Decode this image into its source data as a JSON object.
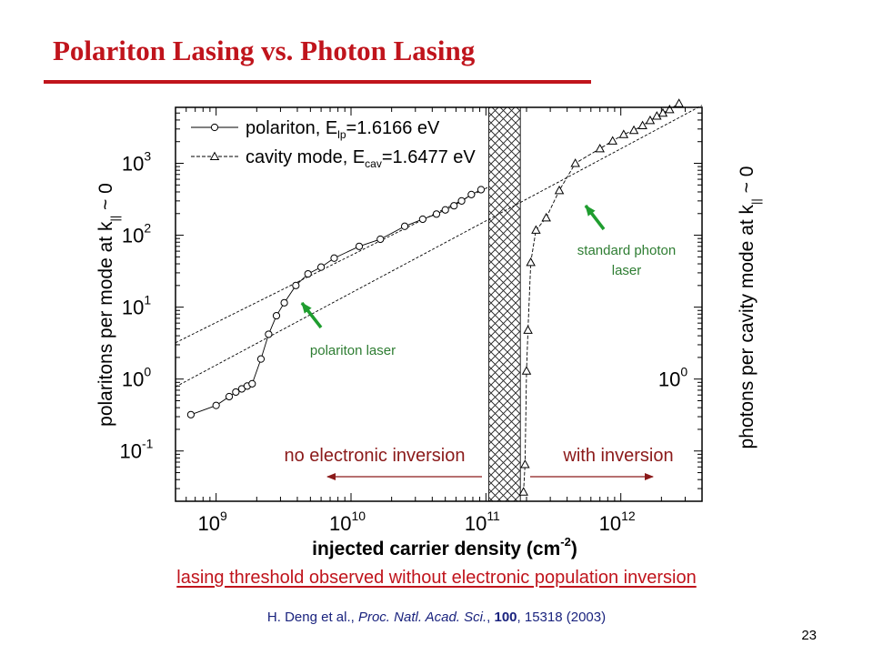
{
  "slide": {
    "title": "Polariton Lasing vs. Photon Lasing",
    "caption": "lasing threshold observed without electronic population inversion",
    "citation": {
      "authors": "H. Deng et al., ",
      "journal": "Proc. Natl. Acad. Sci.",
      "sep1": ", ",
      "volume": "100",
      "rest": ", 15318 (2003)"
    },
    "page_number": "23"
  },
  "colors": {
    "title": "#c0141c",
    "caption": "#c0141c",
    "citation": "#1a237e",
    "arrow": "#8b1a1a",
    "annotation": "#2e7d32",
    "pointer": "#1f9d2f"
  },
  "chart_data": {
    "type": "scatter",
    "x_scale": "log",
    "y_scale": "log",
    "xlim": [
      500000000.0,
      4000000000000.0
    ],
    "ylim": [
      0.02,
      6000
    ],
    "grid": false,
    "legend_position": "top-left",
    "xlabel": "injected carrier density (cm",
    "xlabel_sup": "-2",
    "xlabel_end": ")",
    "ylabel_left": "polaritons per mode at k",
    "ylabel_left_sub": "||",
    "ylabel_left_end": " ~ 0",
    "ylabel_right": "photons per cavity mode at k",
    "ylabel_right_sub": "||",
    "ylabel_right_end": " ~ 0",
    "x_ticks": [
      {
        "value": 1000000000.0,
        "base": "10",
        "exp": "9"
      },
      {
        "value": 10000000000.0,
        "base": "10",
        "exp": "10"
      },
      {
        "value": 100000000000.0,
        "base": "10",
        "exp": "11"
      },
      {
        "value": 1000000000000.0,
        "base": "10",
        "exp": "12"
      }
    ],
    "y_ticks_left": [
      {
        "value": 0.1,
        "base": "10",
        "exp": "-1"
      },
      {
        "value": 1,
        "base": "10",
        "exp": "0"
      },
      {
        "value": 10,
        "base": "10",
        "exp": "1"
      },
      {
        "value": 100,
        "base": "10",
        "exp": "2"
      },
      {
        "value": 1000,
        "base": "10",
        "exp": "3"
      }
    ],
    "y_ticks_right": [
      {
        "value": 1,
        "base": "10",
        "exp": "0"
      }
    ],
    "series": [
      {
        "name": "polariton",
        "legend_text": "polariton, E",
        "legend_sub": "lp",
        "legend_value": "=1.6166 eV",
        "marker": "circle",
        "line": "solid",
        "x": [
          650000000.0,
          1000000000.0,
          1250000000.0,
          1400000000.0,
          1550000000.0,
          1700000000.0,
          1850000000.0,
          2150000000.0,
          2450000000.0,
          2800000000.0,
          3200000000.0,
          3900000000.0,
          4800000000.0,
          6000000000.0,
          7500000000.0,
          11500000000.0,
          16500000000.0,
          25000000000.0,
          34000000000.0,
          43000000000.0,
          50000000000.0,
          58000000000.0,
          66000000000.0,
          78000000000.0,
          92000000000.0
        ],
        "y": [
          0.32,
          0.43,
          0.57,
          0.66,
          0.73,
          0.8,
          0.86,
          1.9,
          4.2,
          7.6,
          11.5,
          20.0,
          29.0,
          36.0,
          48.0,
          70.0,
          88.0,
          133.0,
          167.0,
          197.0,
          225.0,
          257.0,
          300.0,
          368.0,
          430.0
        ]
      },
      {
        "name": "cavity mode",
        "legend_text": "cavity mode, E",
        "legend_sub": "cav",
        "legend_value": "=1.6477 eV",
        "marker": "triangle",
        "line": "dashed",
        "x": [
          190000000000.0,
          195000000000.0,
          200000000000.0,
          205000000000.0,
          215000000000.0,
          235000000000.0,
          280000000000.0,
          350000000000.0,
          460000000000.0,
          700000000000.0,
          870000000000.0,
          1050000000000.0,
          1250000000000.0,
          1450000000000.0,
          1650000000000.0,
          1850000000000.0,
          2050000000000.0,
          2300000000000.0,
          2700000000000.0
        ],
        "y": [
          0.027,
          0.065,
          1.3,
          4.8,
          42.0,
          118.0,
          175.0,
          420.0,
          1000.0,
          1600.0,
          2050.0,
          2520.0,
          2880.0,
          3350.0,
          3950.0,
          4550.0,
          5000.0,
          5600.0,
          6800.0
        ]
      }
    ],
    "guide_lines": [
      {
        "x": [
          500000000.0,
          105000000000.0
        ],
        "y": [
          3.2,
          470
        ]
      },
      {
        "x": [
          500000000.0,
          4000000000000.0
        ],
        "y": [
          0.78,
          6400
        ]
      }
    ],
    "shaded_region": {
      "x": [
        105000000000.0,
        180000000000.0
      ]
    },
    "annotations": {
      "no_inversion": "no electronic inversion",
      "with_inversion": "with inversion",
      "polariton_laser": "polariton laser",
      "photon_laser_line1": "standard photon",
      "photon_laser_line2": "laser"
    }
  }
}
